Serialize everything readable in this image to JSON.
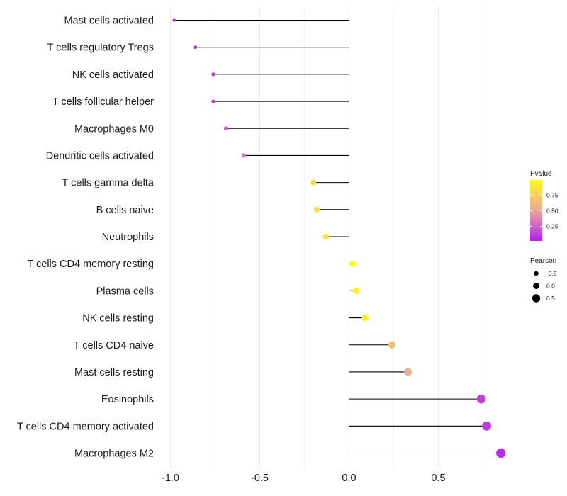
{
  "chart_data": {
    "type": "lollipop",
    "title": "",
    "xlabel": "",
    "ylabel": "",
    "xlim": [
      -1.0,
      0.92
    ],
    "xticks": [
      -1.0,
      -0.5,
      0.0,
      0.5
    ],
    "xtick_labels": [
      "-1.0",
      "-0.5",
      "0.0",
      "0.5"
    ],
    "grid": true,
    "baseline": 0.0,
    "categories": [
      "Mast cells activated",
      "T cells regulatory  Tregs",
      "NK cells activated",
      "T cells follicular helper",
      "Macrophages M0",
      "Dendritic cells activated",
      "T cells gamma delta",
      "B cells naive",
      "Neutrophils",
      "T cells CD4 memory resting",
      "Plasma cells",
      "NK cells resting",
      "T cells CD4 naive",
      "Mast cells resting",
      "Eosinophils",
      "T cells CD4 memory activated",
      "Macrophages M2"
    ],
    "values": [
      -0.98,
      -0.86,
      -0.76,
      -0.76,
      -0.69,
      -0.59,
      -0.2,
      -0.18,
      -0.13,
      0.02,
      0.04,
      0.09,
      0.24,
      0.33,
      0.74,
      0.77,
      0.85
    ],
    "pvalues": [
      0.02,
      0.05,
      0.1,
      0.1,
      0.22,
      0.35,
      0.8,
      0.82,
      0.86,
      0.99,
      0.96,
      0.9,
      0.65,
      0.55,
      0.15,
      0.12,
      0.06
    ],
    "legends": {
      "color": {
        "title": "Pvalue",
        "ticks": [
          0.25,
          0.5,
          0.75
        ],
        "tick_labels": [
          "0.25",
          "0.50",
          "0.75"
        ],
        "range": [
          0.02,
          0.99
        ],
        "low_color": "#b41ff0",
        "mid_color": "#e9a89a",
        "high_color": "#fffa16"
      },
      "size": {
        "title": "Pearson",
        "values": [
          -0.5,
          0.0,
          0.5
        ],
        "labels": [
          "-0.5",
          "0.0",
          "0.5"
        ]
      },
      "placement": "right"
    },
    "colors": {
      "segment": "#000000",
      "grid": "#ebebeb",
      "background": "#ffffff"
    }
  }
}
